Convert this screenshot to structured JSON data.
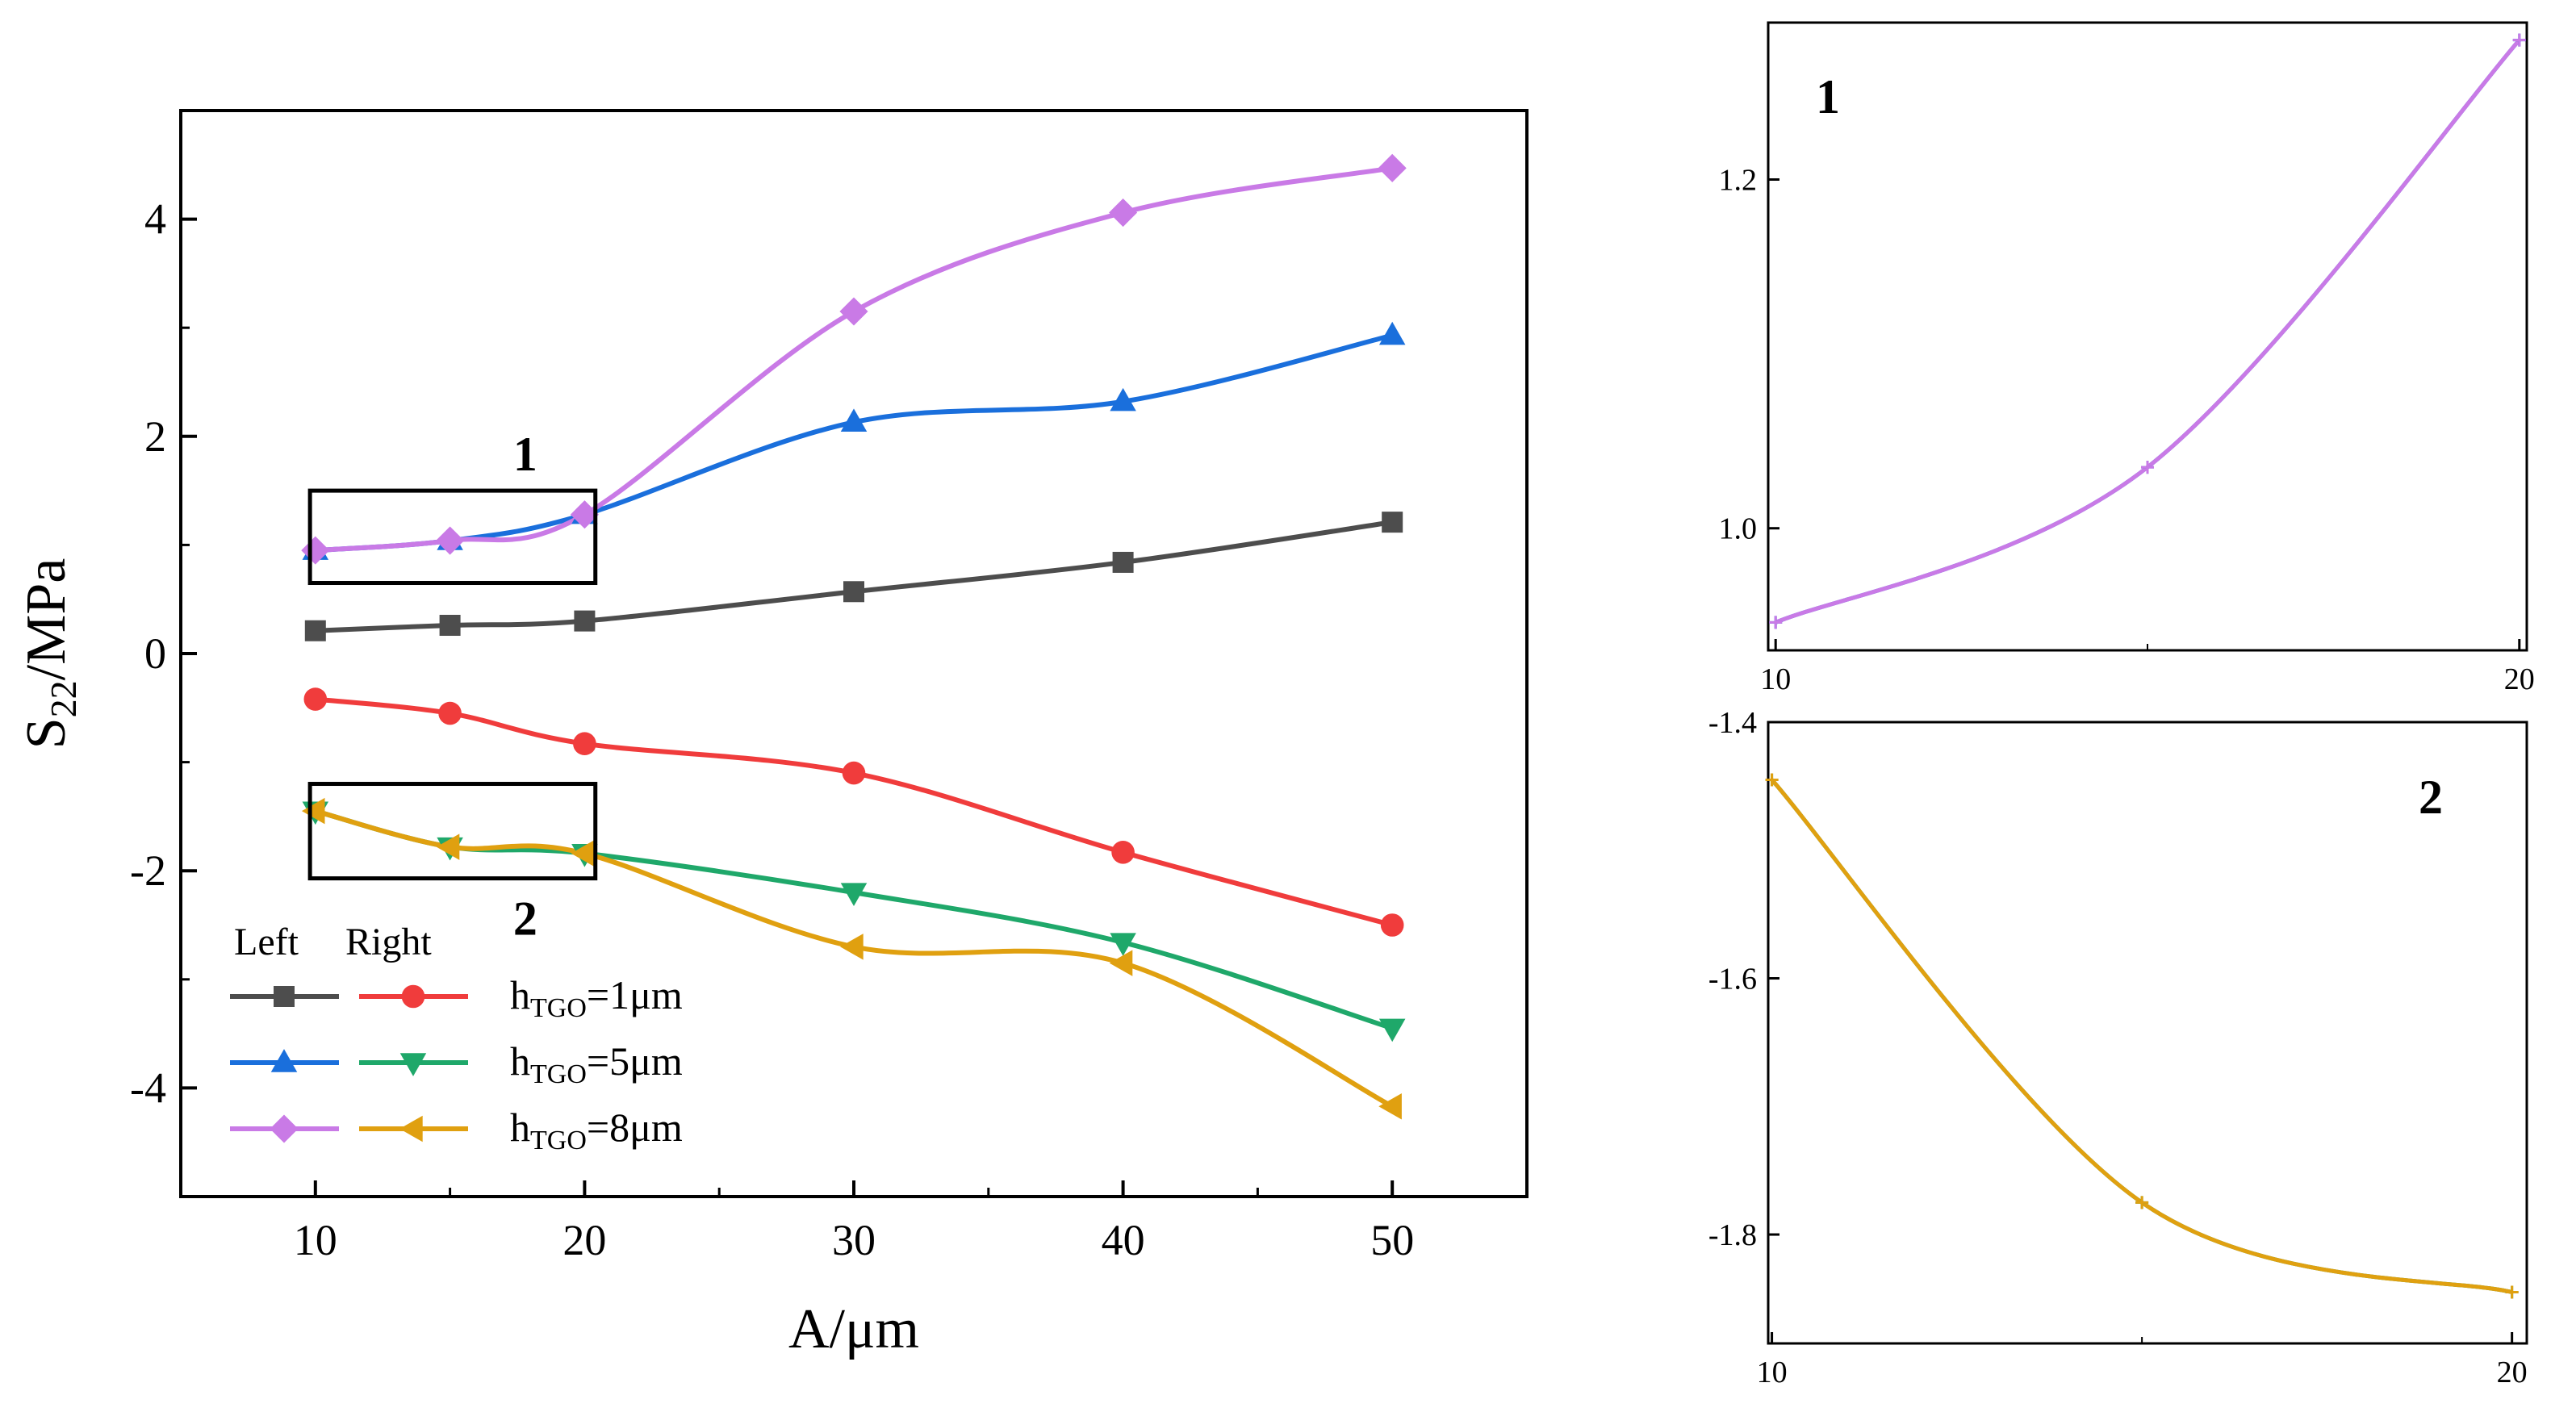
{
  "chart_data": [
    {
      "type": "line",
      "id": "main",
      "xlabel": "A/μm",
      "ylabel_main": "S",
      "ylabel_sub": "22",
      "ylabel_tail": "/MPa",
      "xlim": [
        5,
        55
      ],
      "ylim": [
        -5,
        5
      ],
      "xticks": [
        10,
        20,
        30,
        40,
        50
      ],
      "yticks": [
        -4,
        -2,
        0,
        2,
        4
      ],
      "x": [
        10,
        15,
        20,
        30,
        40,
        50
      ],
      "series": [
        {
          "name": "Left h_TGO=1μm",
          "color": "#4d4d4d",
          "marker": "square",
          "values": [
            0.21,
            0.26,
            0.3,
            0.57,
            0.84,
            1.21
          ]
        },
        {
          "name": "Right h_TGO=1μm",
          "color": "#f03c3c",
          "marker": "circle",
          "values": [
            -0.42,
            -0.55,
            -0.83,
            -1.1,
            -1.83,
            -2.5
          ]
        },
        {
          "name": "Left h_TGO=5μm",
          "color": "#1a6fdc",
          "marker": "triangle-up",
          "values": [
            0.95,
            1.04,
            1.28,
            2.13,
            2.32,
            2.93
          ]
        },
        {
          "name": "Right h_TGO=5μm",
          "color": "#1fa86a",
          "marker": "triangle-down",
          "values": [
            -1.45,
            -1.78,
            -1.84,
            -2.2,
            -2.66,
            -3.45
          ]
        },
        {
          "name": "Left h_TGO=8μm",
          "color": "#c97ae6",
          "marker": "diamond",
          "values": [
            0.95,
            1.04,
            1.28,
            3.15,
            4.06,
            4.47
          ]
        },
        {
          "name": "Right h_TGO=8μm",
          "color": "#e0a010",
          "marker": "triangle-left",
          "values": [
            -1.45,
            -1.78,
            -1.84,
            -2.7,
            -2.85,
            -4.17
          ]
        }
      ],
      "zoom_boxes": [
        {
          "label": "1",
          "x_range": [
            9.8,
            20.4
          ],
          "y_range": [
            0.65,
            1.5
          ]
        },
        {
          "label": "2",
          "x_range": [
            9.8,
            20.4
          ],
          "y_range": [
            -2.07,
            -1.2
          ]
        }
      ],
      "legend": {
        "head_left": "Left",
        "head_right": "Right",
        "entries": [
          {
            "prefix": "h",
            "sub": "TGO",
            "suffix": "=1μm"
          },
          {
            "prefix": "h",
            "sub": "TGO",
            "suffix": "=5μm"
          },
          {
            "prefix": "h",
            "sub": "TGO",
            "suffix": "=8μm"
          }
        ],
        "placement": "bottom-left"
      }
    },
    {
      "type": "line",
      "id": "inset1",
      "label": "1",
      "xlim": [
        9.9,
        20.1
      ],
      "ylim": [
        0.93,
        1.29
      ],
      "xticks": [
        10,
        20
      ],
      "yticks": [
        1.0,
        1.2
      ],
      "ytick_labels": [
        "1.0",
        "1.2"
      ],
      "x": [
        10,
        15,
        20
      ],
      "series": [
        {
          "name": "Left h_TGO=5μm",
          "color": "#1a6fdc",
          "values": [
            0.946,
            1.035,
            1.28
          ]
        },
        {
          "name": "Left h_TGO=8μm",
          "color": "#c97ae6",
          "values": [
            0.946,
            1.035,
            1.28
          ]
        }
      ]
    },
    {
      "type": "line",
      "id": "inset2",
      "label": "2",
      "xlim": [
        9.95,
        20.2
      ],
      "ylim": [
        -1.885,
        -1.4
      ],
      "xticks": [
        10,
        20
      ],
      "yticks": [
        -1.4,
        -1.6,
        -1.8
      ],
      "ytick_labels": [
        "-1.4",
        "-1.6",
        "-1.8"
      ],
      "x": [
        10,
        15,
        20
      ],
      "series": [
        {
          "name": "Right h_TGO=5μm",
          "color": "#1fa86a",
          "values": [
            -1.445,
            -1.775,
            -1.845
          ]
        },
        {
          "name": "Right h_TGO=8μm",
          "color": "#e0a010",
          "values": [
            -1.445,
            -1.775,
            -1.845
          ]
        }
      ]
    }
  ]
}
